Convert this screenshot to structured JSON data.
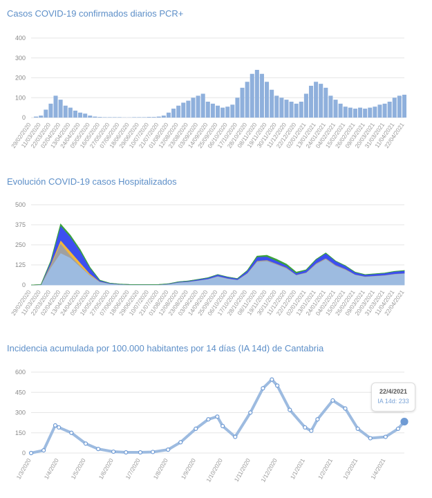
{
  "chart_data": [
    {
      "type": "bar",
      "title": "Casos COVID-19 confirmados diarios PCR+",
      "start_date": "29/02/2020",
      "end_date": "22/04/2021",
      "value_step_days": 5.5,
      "values": [
        0,
        5,
        10,
        40,
        70,
        110,
        90,
        60,
        50,
        35,
        25,
        20,
        10,
        5,
        3,
        2,
        2,
        2,
        2,
        1,
        1,
        2,
        2,
        2,
        3,
        3,
        5,
        10,
        25,
        45,
        60,
        75,
        85,
        100,
        110,
        120,
        80,
        70,
        60,
        50,
        55,
        65,
        100,
        150,
        180,
        220,
        240,
        220,
        180,
        140,
        110,
        100,
        90,
        80,
        70,
        80,
        120,
        160,
        180,
        170,
        150,
        110,
        90,
        70,
        55,
        50,
        45,
        50,
        45,
        50,
        55,
        65,
        70,
        80,
        100,
        110,
        115
      ],
      "ylim": [
        0,
        400
      ],
      "yticks": [
        0,
        100,
        200,
        300,
        400
      ],
      "xticks": [
        "29/02/2020",
        "11/03/2020",
        "22/03/2020",
        "02/04/2020",
        "13/04/2020",
        "24/04/2020",
        "05/05/2020",
        "16/05/2020",
        "27/05/2020",
        "07/06/2020",
        "18/06/2020",
        "29/06/2020",
        "10/07/2020",
        "21/07/2020",
        "01/08/2020",
        "12/08/2020",
        "23/08/2020",
        "03/09/2020",
        "14/09/2020",
        "25/09/2020",
        "06/10/2020",
        "17/10/2020",
        "28/10/2020",
        "08/11/2020",
        "19/11/2020",
        "30/11/2020",
        "11/12/2020",
        "22/12/2020",
        "02/01/2021",
        "13/01/2021",
        "24/01/2021",
        "04/02/2021",
        "15/02/2021",
        "26/02/2021",
        "09/03/2021",
        "20/03/2021",
        "31/03/2021",
        "11/04/2021",
        "22/04/2021"
      ],
      "grid": true,
      "color": "#8fb0dc"
    },
    {
      "type": "area",
      "stacked": true,
      "title": "Evolución COVID-19 casos  Hospitalizados",
      "x": [
        "29/02/2020",
        "11/03/2020",
        "22/03/2020",
        "02/04/2020",
        "13/04/2020",
        "24/04/2020",
        "05/05/2020",
        "16/05/2020",
        "27/05/2020",
        "07/06/2020",
        "18/06/2020",
        "29/06/2020",
        "10/07/2020",
        "21/07/2020",
        "01/08/2020",
        "12/08/2020",
        "23/08/2020",
        "03/09/2020",
        "14/09/2020",
        "25/09/2020",
        "06/10/2020",
        "17/10/2020",
        "28/10/2020",
        "08/11/2020",
        "19/11/2020",
        "30/11/2020",
        "11/12/2020",
        "22/12/2020",
        "02/01/2021",
        "13/01/2021",
        "24/01/2021",
        "04/02/2021",
        "15/02/2021",
        "26/02/2021",
        "09/03/2021",
        "20/03/2021",
        "31/03/2021",
        "11/04/2021",
        "22/04/2021"
      ],
      "series": [
        {
          "color": "#9dbbe0",
          "values": [
            0,
            2,
            110,
            200,
            170,
            115,
            60,
            20,
            9,
            5,
            2,
            2,
            2,
            2,
            6,
            16,
            20,
            28,
            37,
            54,
            40,
            32,
            72,
            145,
            150,
            128,
            104,
            62,
            76,
            130,
            162,
            120,
            96,
            64,
            52,
            56,
            60,
            68,
            72
          ]
        },
        {
          "color": "#a0a0a0",
          "values": [
            0,
            0,
            15,
            60,
            15,
            5,
            3,
            1,
            0,
            0,
            0,
            0,
            0,
            0,
            0,
            1,
            1,
            1,
            1,
            2,
            2,
            1,
            3,
            5,
            5,
            4,
            4,
            2,
            3,
            4,
            5,
            4,
            3,
            2,
            2,
            2,
            2,
            2,
            2
          ]
        },
        {
          "color": "#f2b63c",
          "values": [
            0,
            0,
            5,
            20,
            25,
            20,
            7,
            1,
            0,
            0,
            0,
            0,
            0,
            0,
            0,
            0,
            0,
            0,
            0,
            0,
            0,
            0,
            0,
            1,
            1,
            1,
            1,
            0,
            0,
            1,
            1,
            1,
            1,
            0,
            0,
            0,
            0,
            0,
            0
          ]
        },
        {
          "color": "#3d4ff0",
          "values": [
            0,
            0,
            18,
            90,
            90,
            72,
            36,
            7,
            3,
            1,
            1,
            0,
            0,
            1,
            2,
            3,
            4,
            6,
            7,
            9,
            8,
            7,
            14,
            24,
            22,
            18,
            13,
            10,
            14,
            23,
            30,
            24,
            19,
            13,
            10,
            11,
            12,
            14,
            15
          ]
        },
        {
          "color": "#3ca33c",
          "values": [
            0,
            0,
            2,
            10,
            10,
            8,
            4,
            1,
            0,
            0,
            0,
            0,
            0,
            0,
            0,
            0,
            0,
            0,
            0,
            0,
            0,
            0,
            1,
            5,
            7,
            9,
            8,
            6,
            2,
            2,
            2,
            1,
            1,
            1,
            1,
            1,
            1,
            1,
            1
          ]
        }
      ],
      "ylim": [
        0,
        500
      ],
      "yticks": [
        0,
        125,
        250,
        375,
        500
      ],
      "grid": true
    },
    {
      "type": "line",
      "title": "Incidencia acumulada por 100.000 habitantes por 14 días (IA 14d) de Cantabria",
      "x": [
        "1/3/2020",
        "15/3/2020",
        "28/3/2020",
        "1/4/2020",
        "15/4/2020",
        "1/5/2020",
        "15/5/2020",
        "1/6/2020",
        "15/6/2020",
        "1/7/2020",
        "15/7/2020",
        "1/8/2020",
        "15/8/2020",
        "1/9/2020",
        "15/9/2020",
        "25/9/2020",
        "1/10/2020",
        "15/10/2020",
        "1/11/2020",
        "15/11/2020",
        "25/11/2020",
        "1/12/2020",
        "15/12/2020",
        "1/1/2021",
        "8/1/2021",
        "15/1/2021",
        "1/2/2021",
        "15/2/2021",
        "1/3/2021",
        "15/3/2021",
        "1/4/2021",
        "15/4/2021",
        "22/4/2021"
      ],
      "values": [
        0,
        20,
        205,
        190,
        150,
        70,
        30,
        10,
        5,
        5,
        8,
        25,
        80,
        180,
        250,
        270,
        200,
        120,
        300,
        480,
        545,
        500,
        320,
        190,
        165,
        250,
        390,
        330,
        180,
        110,
        120,
        180,
        233
      ],
      "xticks": [
        "1/3/2020",
        "1/4/2020",
        "1/5/2020",
        "1/6/2020",
        "1/7/2020",
        "1/8/2020",
        "1/9/2020",
        "1/10/2020",
        "1/11/2020",
        "1/12/2020",
        "1/1/2021",
        "1/2/2021",
        "1/3/2021",
        "1/4/2021"
      ],
      "ylim": [
        0,
        600
      ],
      "yticks": [
        0,
        150,
        300,
        450,
        600
      ],
      "grid": true,
      "color": "#6f9bd4",
      "tooltip": {
        "date": "22/4/2021",
        "label": "IA 14d: 233"
      }
    }
  ]
}
